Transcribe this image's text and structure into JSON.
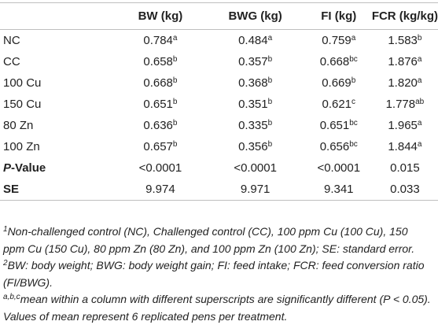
{
  "table": {
    "header": [
      "",
      "BW (kg)",
      "BWG (kg)",
      "FI (kg)",
      "FCR (kg/kg)"
    ],
    "rows": [
      {
        "label": "NC",
        "cells": [
          {
            "value": "0.784",
            "sup": "a"
          },
          {
            "value": "0.484",
            "sup": "a"
          },
          {
            "value": "0.759",
            "sup": "a"
          },
          {
            "value": "1.583",
            "sup": "b"
          }
        ]
      },
      {
        "label": "CC",
        "cells": [
          {
            "value": "0.658",
            "sup": "b"
          },
          {
            "value": "0.357",
            "sup": "b"
          },
          {
            "value": "0.668",
            "sup": "bc"
          },
          {
            "value": "1.876",
            "sup": "a"
          }
        ]
      },
      {
        "label": "100 Cu",
        "cells": [
          {
            "value": "0.668",
            "sup": "b"
          },
          {
            "value": "0.368",
            "sup": "b"
          },
          {
            "value": "0.669",
            "sup": "b"
          },
          {
            "value": "1.820",
            "sup": "a"
          }
        ]
      },
      {
        "label": "150 Cu",
        "cells": [
          {
            "value": "0.651",
            "sup": "b"
          },
          {
            "value": "0.351",
            "sup": "b"
          },
          {
            "value": "0.621",
            "sup": "c"
          },
          {
            "value": "1.778",
            "sup": "ab"
          }
        ]
      },
      {
        "label": "80 Zn",
        "cells": [
          {
            "value": "0.636",
            "sup": "b"
          },
          {
            "value": "0.335",
            "sup": "b"
          },
          {
            "value": "0.651",
            "sup": "bc"
          },
          {
            "value": "1.965",
            "sup": "a"
          }
        ]
      },
      {
        "label": "100 Zn",
        "cells": [
          {
            "value": "0.657",
            "sup": "b"
          },
          {
            "value": "0.356",
            "sup": "b"
          },
          {
            "value": "0.656",
            "sup": "bc"
          },
          {
            "value": "1.844",
            "sup": "a"
          }
        ]
      },
      {
        "label_italic": "P",
        "label": "-Value",
        "bold": true,
        "cells": [
          {
            "value": "<0.0001"
          },
          {
            "value": "<0.0001"
          },
          {
            "value": "<0.0001"
          },
          {
            "value": "0.015"
          }
        ]
      },
      {
        "label": "SE",
        "bold": true,
        "cells": [
          {
            "value": "9.974"
          },
          {
            "value": "9.971"
          },
          {
            "value": "9.341"
          },
          {
            "value": "0.033"
          }
        ]
      }
    ]
  },
  "footnotes": [
    {
      "sup": "1",
      "text": "Non-challenged control (NC), Challenged control (CC), 100 ppm Cu (100 Cu), 150 ppm Cu (150 Cu), 80 ppm Zn (80 Zn), and 100 ppm Zn (100 Zn); SE: standard error."
    },
    {
      "sup": "2",
      "text": "BW: body weight; BWG: body weight gain; FI: feed intake; FCR: feed conversion ratio (FI/BWG)."
    },
    {
      "sup": "a,b,c",
      "text": "mean within a column with different superscripts are significantly different (P < 0.05)."
    },
    {
      "text": "Values of mean represent 6 replicated pens per treatment."
    }
  ]
}
